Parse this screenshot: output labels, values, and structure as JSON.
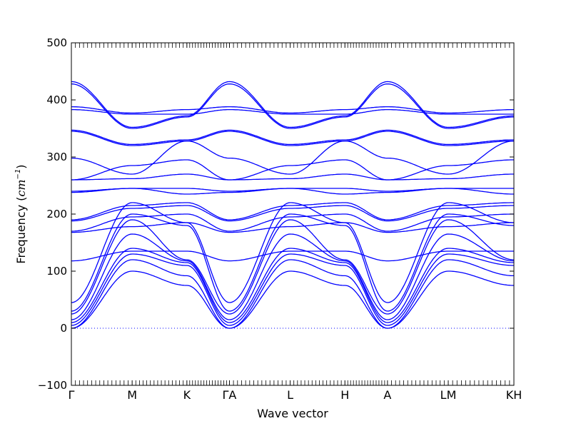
{
  "chart_data": {
    "type": "line",
    "title": "",
    "xlabel": "Wave vector",
    "ylabel_main": "Frequency (",
    "ylabel_unit": "cm",
    "ylabel_exp": "−1",
    "ylabel_close": ")",
    "ylim": [
      -100,
      500
    ],
    "xlim": [
      0,
      7.28
    ],
    "y_ticks": [
      -100,
      0,
      100,
      200,
      300,
      400,
      500
    ],
    "y_tick_labels": [
      "−100",
      "0",
      "100",
      "200",
      "300",
      "400",
      "500"
    ],
    "high_symmetry_points": [
      {
        "label": "Γ",
        "x": 0.0
      },
      {
        "label": "M",
        "x": 1.0
      },
      {
        "label": "K",
        "x": 1.9
      },
      {
        "label": "ΓA",
        "x": 2.6
      },
      {
        "label": "L",
        "x": 3.6
      },
      {
        "label": "H",
        "x": 4.5
      },
      {
        "label": "A",
        "x": 5.2
      },
      {
        "label": "LM",
        "x": 6.2
      },
      {
        "label": "KH",
        "x": 7.28
      }
    ],
    "segment_ends": [
      0.0,
      1.0,
      1.9,
      2.6,
      3.6,
      4.5,
      5.2,
      6.2,
      7.28
    ],
    "zero_line": 0,
    "line_color": "#0000ff",
    "zero_line_color": "#0000ff",
    "series_profile": {
      "description_units": "cm^-1 at each high-symmetry point in order",
      "bands_gamma_M_K_gamma": [
        [
          0,
          100,
          75,
          0
        ],
        [
          0,
          120,
          92,
          0
        ],
        [
          5,
          130,
          110,
          5
        ],
        [
          10,
          140,
          115,
          10
        ],
        [
          15,
          165,
          118,
          15
        ],
        [
          25,
          190,
          120,
          25
        ],
        [
          30,
          200,
          180,
          30
        ],
        [
          45,
          220,
          185,
          45
        ],
        [
          118,
          135,
          135,
          118
        ],
        [
          168,
          178,
          185,
          168
        ],
        [
          170,
          195,
          200,
          170
        ],
        [
          188,
          210,
          215,
          188
        ],
        [
          190,
          215,
          220,
          190
        ],
        [
          238,
          245,
          235,
          238
        ],
        [
          240,
          245,
          245,
          240
        ],
        [
          260,
          262,
          270,
          260
        ],
        [
          260,
          285,
          295,
          260
        ],
        [
          298,
          270,
          328,
          298
        ],
        [
          345,
          320,
          328,
          345
        ],
        [
          347,
          322,
          330,
          347
        ],
        [
          383,
          375,
          375,
          383
        ],
        [
          388,
          377,
          383,
          388
        ],
        [
          428,
          350,
          370,
          428
        ],
        [
          432,
          352,
          372,
          432
        ]
      ]
    }
  }
}
